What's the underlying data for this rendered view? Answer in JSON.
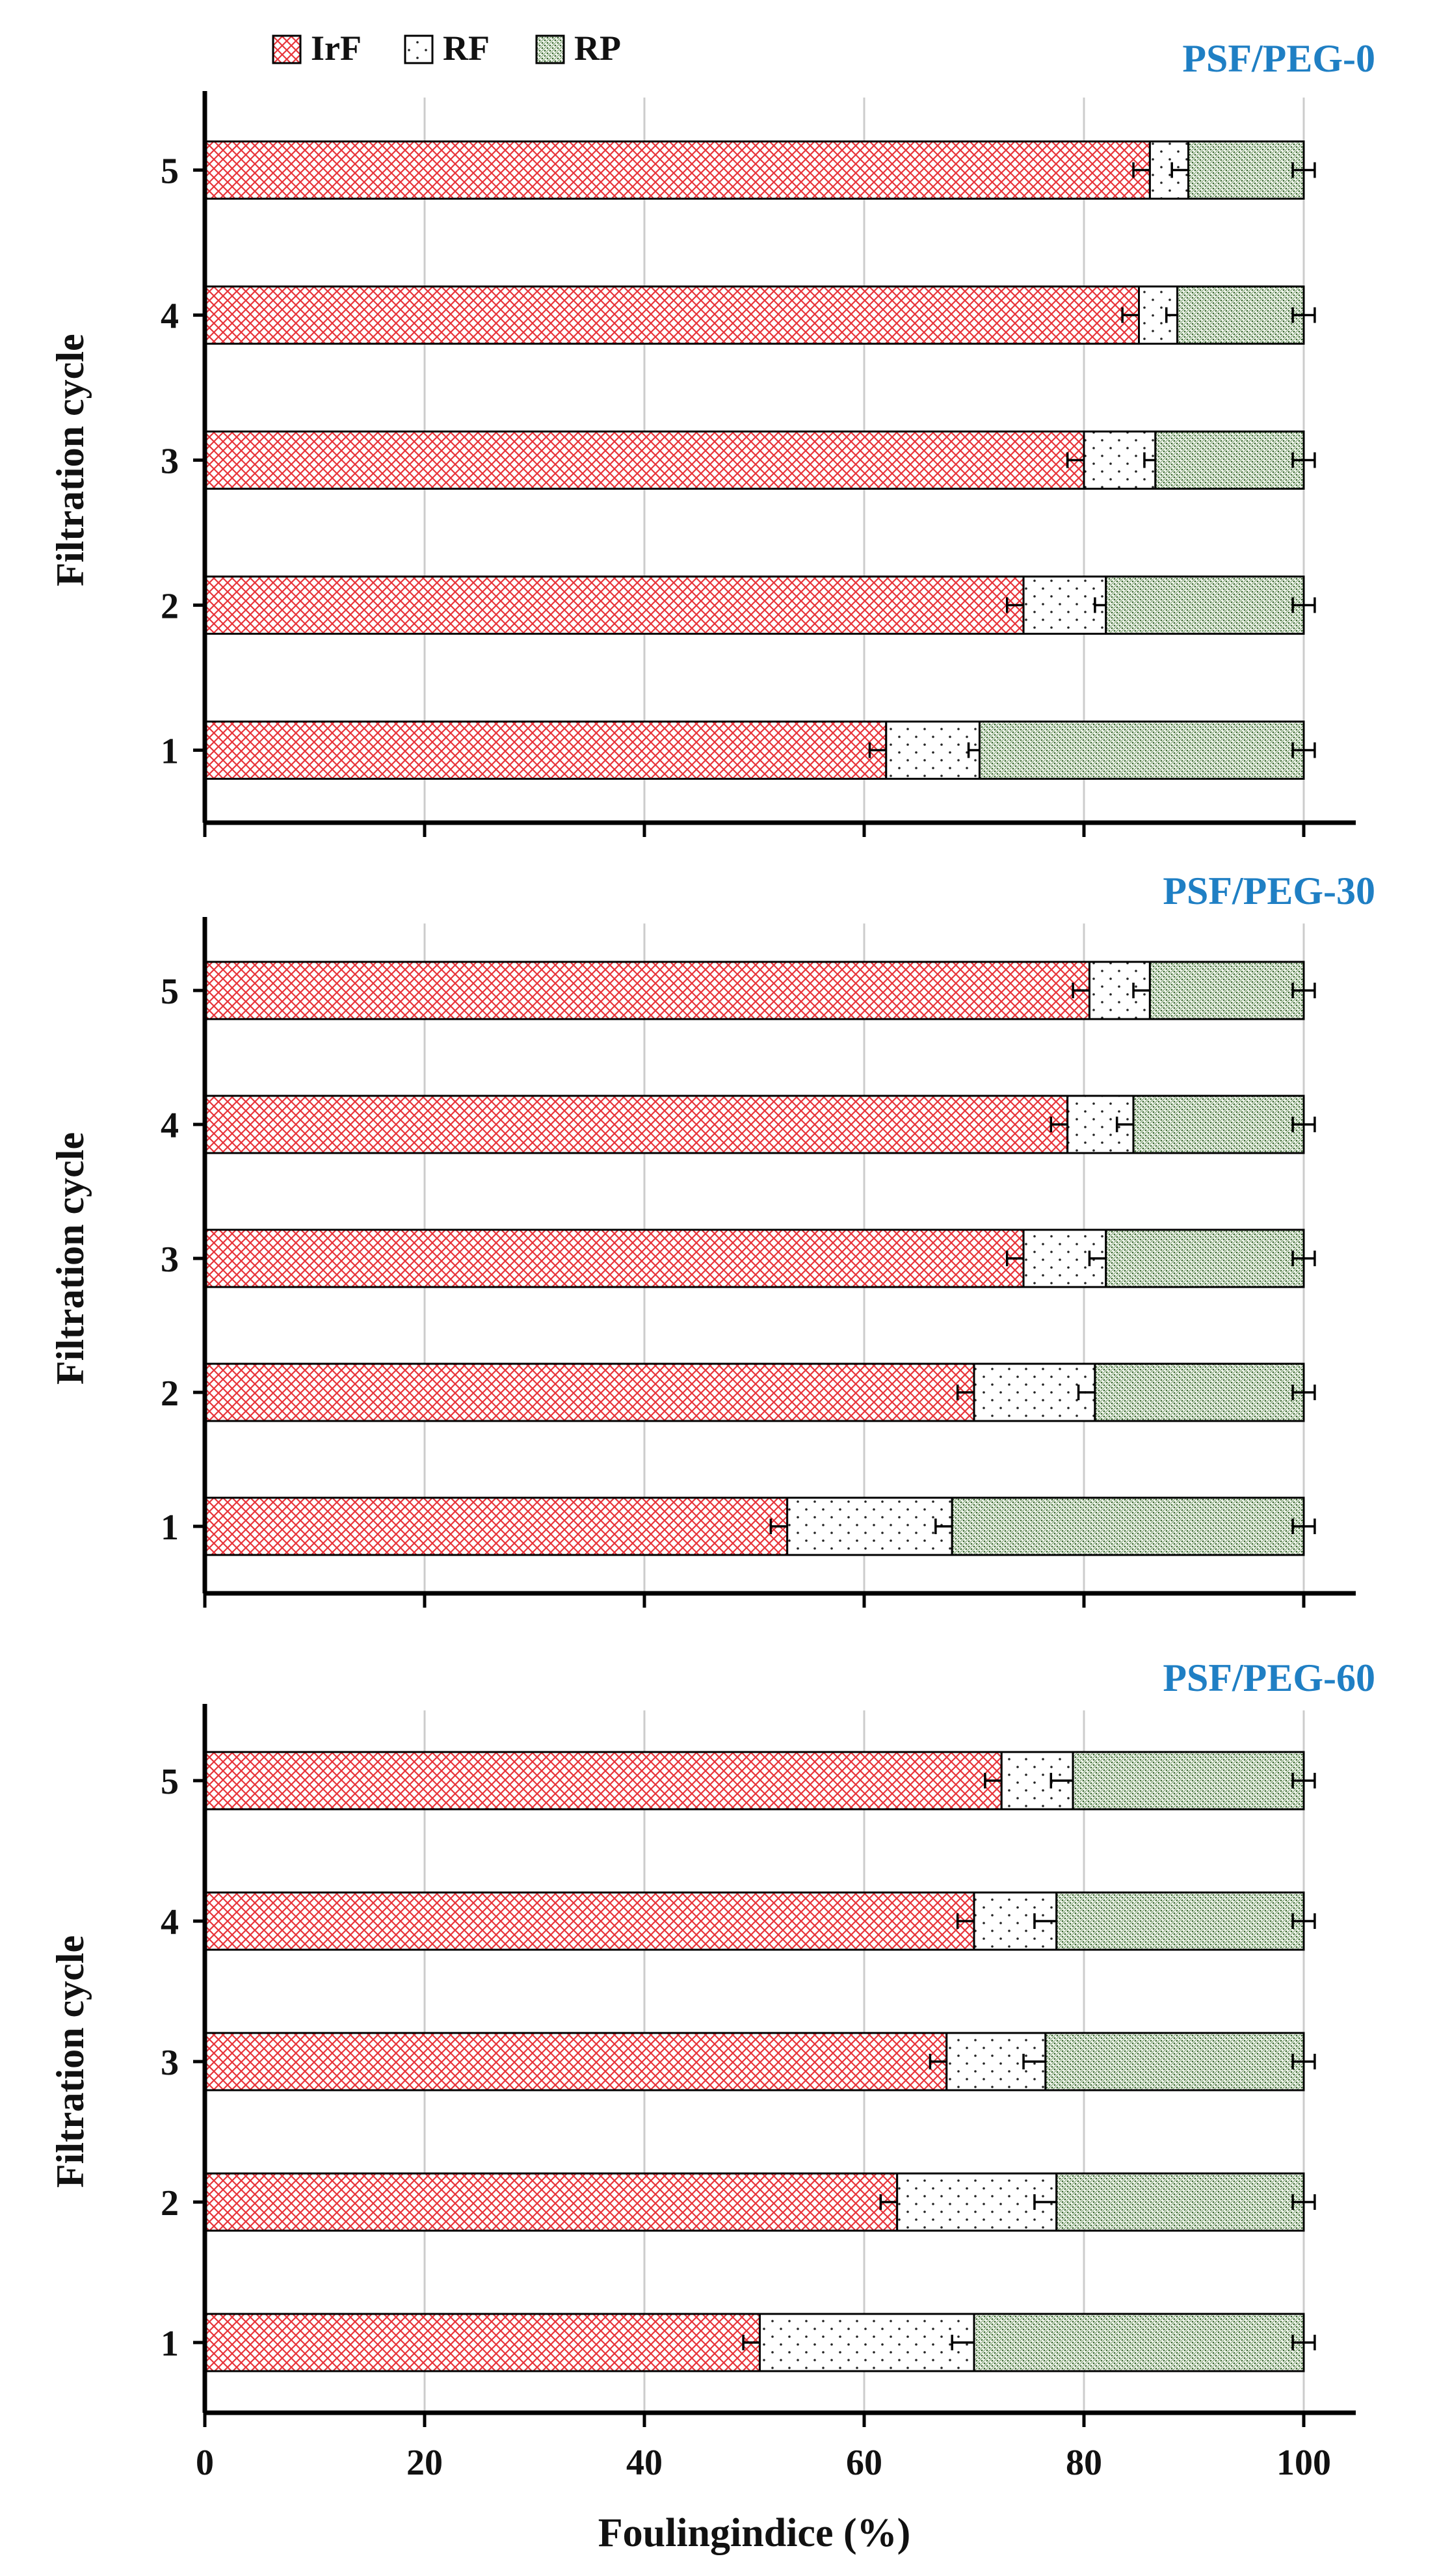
{
  "legend": {
    "items": [
      {
        "key": "IrF",
        "label": "IrF"
      },
      {
        "key": "RF",
        "label": "RF"
      },
      {
        "key": "RP",
        "label": "RP"
      }
    ]
  },
  "colors": {
    "irf": "#e8343a",
    "rf": "#111111",
    "rp": "#3d6b33",
    "title": "#1f7fc4",
    "grid": "#cccccc"
  },
  "chart_data": [
    {
      "type": "bar",
      "orientation": "horizontal",
      "stacked": true,
      "title": "PSF/PEG-0",
      "ylabel": "Filtration cycle",
      "xlabel": "",
      "xlim": [
        0,
        100
      ],
      "xticks": [
        0,
        20,
        40,
        60,
        80,
        100
      ],
      "categories": [
        "1",
        "2",
        "3",
        "4",
        "5"
      ],
      "series": [
        {
          "name": "IrF",
          "values": [
            62,
            74.5,
            80,
            85,
            86
          ]
        },
        {
          "name": "RF",
          "values": [
            8.5,
            7.5,
            6.5,
            3.5,
            3.5
          ]
        },
        {
          "name": "RP",
          "values": [
            29.5,
            18,
            13.5,
            11.5,
            10.5
          ]
        }
      ],
      "error_bars": {
        "IrF": [
          1.5,
          1.5,
          1.5,
          1.5,
          1.5
        ],
        "RF": [
          1,
          1,
          1,
          1,
          1.5
        ],
        "RP": [
          1,
          1,
          1,
          1,
          1
        ]
      }
    },
    {
      "type": "bar",
      "orientation": "horizontal",
      "stacked": true,
      "title": "PSF/PEG-30",
      "ylabel": "Filtration cycle",
      "xlabel": "",
      "xlim": [
        0,
        100
      ],
      "xticks": [
        0,
        20,
        40,
        60,
        80,
        100
      ],
      "categories": [
        "1",
        "2",
        "3",
        "4",
        "5"
      ],
      "series": [
        {
          "name": "IrF",
          "values": [
            53,
            70,
            74.5,
            78.5,
            80.5
          ]
        },
        {
          "name": "RF",
          "values": [
            15,
            11,
            7.5,
            6,
            5.5
          ]
        },
        {
          "name": "RP",
          "values": [
            32,
            19,
            18,
            15.5,
            14
          ]
        }
      ],
      "error_bars": {
        "IrF": [
          1.5,
          1.5,
          1.5,
          1.5,
          1.5
        ],
        "RF": [
          1.5,
          1.5,
          1.5,
          1.5,
          1.5
        ],
        "RP": [
          1,
          1,
          1,
          1,
          1
        ]
      }
    },
    {
      "type": "bar",
      "orientation": "horizontal",
      "stacked": true,
      "title": "PSF/PEG-60",
      "ylabel": "Filtration cycle",
      "xlabel": "Foulingindice (%)",
      "xlim": [
        0,
        100
      ],
      "xticks": [
        0,
        20,
        40,
        60,
        80,
        100
      ],
      "categories": [
        "1",
        "2",
        "3",
        "4",
        "5"
      ],
      "series": [
        {
          "name": "IrF",
          "values": [
            50.5,
            63,
            67.5,
            70,
            72.5
          ]
        },
        {
          "name": "RF",
          "values": [
            19.5,
            14.5,
            9,
            7.5,
            6.5
          ]
        },
        {
          "name": "RP",
          "values": [
            30,
            22.5,
            23.5,
            22.5,
            21
          ]
        }
      ],
      "error_bars": {
        "IrF": [
          1.5,
          1.5,
          1.5,
          1.5,
          1.5
        ],
        "RF": [
          2,
          2,
          2,
          2,
          2
        ],
        "RP": [
          1,
          1,
          1,
          1,
          1
        ]
      }
    }
  ]
}
